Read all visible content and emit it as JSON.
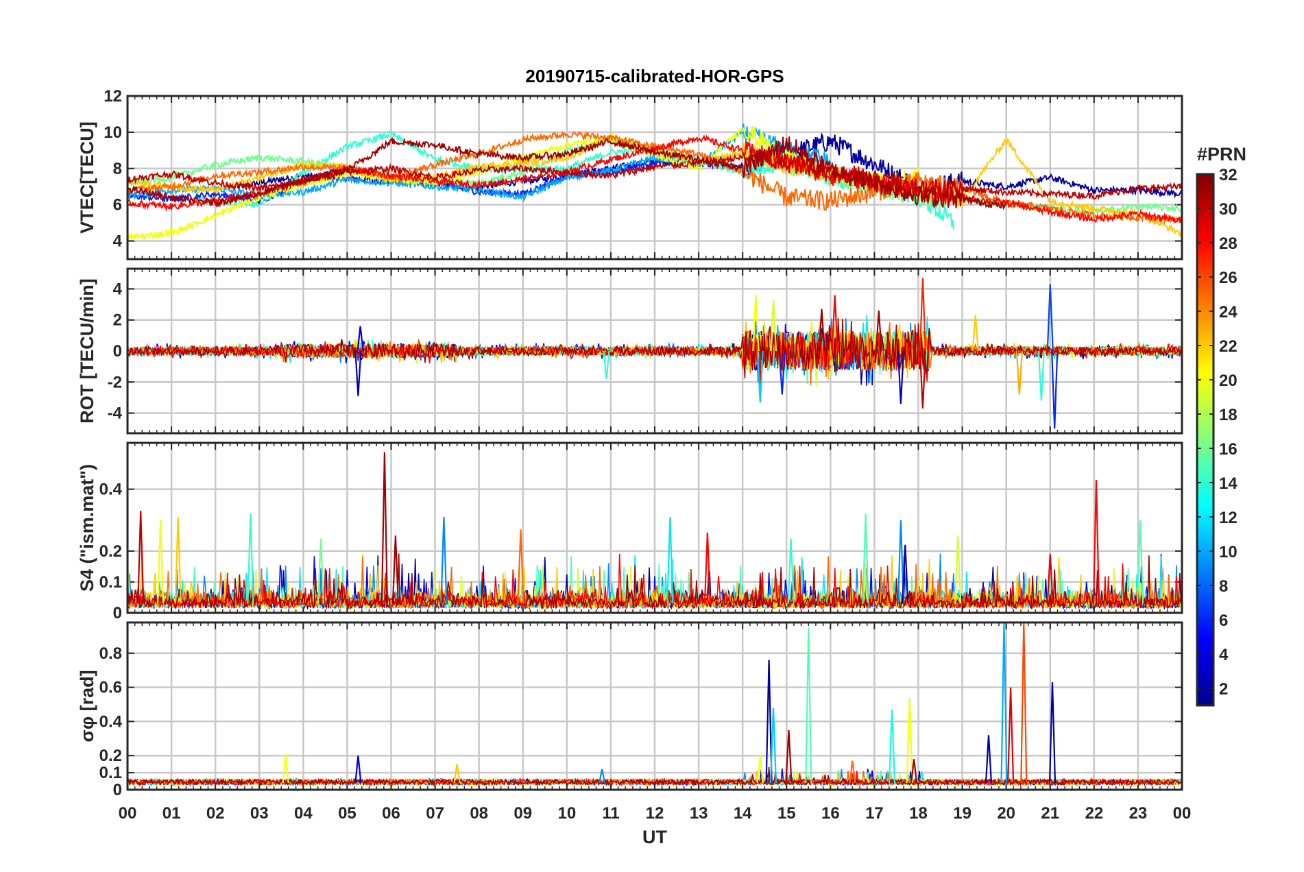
{
  "figure": {
    "title": "20190715-calibrated-HOR-GPS",
    "xlabel": "UT",
    "x_ticks": [
      "00",
      "01",
      "02",
      "03",
      "04",
      "05",
      "06",
      "07",
      "08",
      "09",
      "10",
      "11",
      "12",
      "13",
      "14",
      "15",
      "16",
      "17",
      "18",
      "19",
      "20",
      "21",
      "22",
      "23",
      "00"
    ]
  },
  "colorbar": {
    "label": "#PRN",
    "range": [
      1,
      32
    ],
    "ticks": [
      "2",
      "4",
      "6",
      "8",
      "10",
      "12",
      "14",
      "16",
      "18",
      "20",
      "22",
      "24",
      "26",
      "28",
      "30",
      "32"
    ],
    "colormap": "jet"
  },
  "chart_data": [
    {
      "type": "line",
      "panel": "vtec",
      "ylabel": "VTEC[TECU]",
      "ylim": [
        3,
        12
      ],
      "yticks": [
        "4",
        "6",
        "8",
        "10",
        "12"
      ],
      "grid": true,
      "series": [
        {
          "prn": 2,
          "x": [
            2.5,
            4,
            6,
            8,
            10,
            12,
            14,
            16,
            18,
            19,
            20,
            21,
            22,
            23,
            24
          ],
          "y": [
            7.0,
            7.6,
            7.3,
            7.0,
            7.6,
            8.4,
            8.1,
            9.5,
            7.0,
            7.3,
            7.0,
            7.5,
            6.8,
            6.8,
            6.6
          ]
        },
        {
          "prn": 6,
          "x": [
            0,
            1,
            2,
            3,
            4,
            5,
            6,
            7,
            8,
            9,
            10,
            11,
            12,
            13
          ],
          "y": [
            6.5,
            6.3,
            6.6,
            6.2,
            7.3,
            8.0,
            7.5,
            7.2,
            6.7,
            6.6,
            7.6,
            7.8,
            8.3,
            8.5
          ]
        },
        {
          "prn": 10,
          "x": [
            0,
            1,
            2,
            3,
            4,
            5,
            6,
            7,
            8,
            9,
            10,
            11,
            12,
            13,
            14,
            15,
            16
          ],
          "y": [
            6.5,
            6.8,
            6.9,
            6.5,
            6.7,
            7.4,
            7.2,
            7.0,
            6.8,
            6.4,
            7.5,
            7.9,
            8.6,
            8.2,
            10.0,
            9.0,
            8.4
          ]
        },
        {
          "prn": 14,
          "x": [
            1.5,
            3,
            4,
            5,
            6,
            7,
            8,
            9,
            10,
            11,
            12,
            13,
            14,
            15,
            16,
            17,
            18,
            18.8
          ],
          "y": [
            6.3,
            6.0,
            7.8,
            9.2,
            9.9,
            8.5,
            8.0,
            7.9,
            8.0,
            8.9,
            9.0,
            8.4,
            7.8,
            8.5,
            7.5,
            7.0,
            6.5,
            5.0
          ]
        },
        {
          "prn": 16,
          "x": [
            0,
            1,
            2,
            3,
            4,
            5,
            6,
            7,
            8,
            9,
            10,
            11,
            12,
            13,
            14,
            15,
            16,
            17,
            18,
            19,
            20,
            21,
            22,
            23,
            24
          ],
          "y": [
            7.2,
            7.5,
            8.2,
            8.6,
            8.4,
            8.0,
            7.6,
            7.3,
            7.2,
            7.8,
            8.9,
            9.6,
            9.1,
            8.3,
            8.8,
            8.2,
            7.6,
            7.0,
            6.5,
            6.3,
            6.0,
            5.8,
            5.6,
            5.9,
            5.8
          ]
        },
        {
          "prn": 20,
          "x": [
            0,
            0.5,
            1.1,
            3,
            4,
            5,
            6,
            7,
            8,
            9,
            10,
            11,
            12,
            13,
            14,
            15,
            16,
            17,
            18
          ],
          "y": [
            4.2,
            4.3,
            4.5,
            6.4,
            7.1,
            7.7,
            7.4,
            7.2,
            7.8,
            8.6,
            9.3,
            9.7,
            8.7,
            8.0,
            10.2,
            8.6,
            7.7,
            7.2,
            7.5
          ]
        },
        {
          "prn": 22,
          "x": [
            0,
            1,
            2,
            3,
            4,
            5,
            6,
            7,
            8,
            9,
            10,
            11,
            12,
            13,
            14,
            15,
            16,
            17,
            18,
            19,
            20,
            21,
            22,
            23,
            24
          ],
          "y": [
            7.3,
            7.0,
            6.8,
            7.5,
            8.2,
            8.1,
            7.4,
            7.5,
            8.1,
            8.3,
            8.6,
            9.7,
            9.0,
            8.3,
            8.9,
            8.2,
            7.7,
            7.2,
            6.8,
            6.3,
            9.6,
            6.2,
            5.8,
            5.5,
            4.4
          ]
        },
        {
          "prn": 25,
          "x": [
            0,
            1,
            2,
            3,
            4,
            5,
            6,
            7,
            8,
            9,
            10,
            11,
            12,
            13,
            14,
            15,
            16,
            17,
            18,
            19,
            20,
            21,
            22,
            23,
            24
          ],
          "y": [
            6.8,
            7.0,
            7.6,
            7.8,
            8.1,
            8.0,
            7.5,
            8.2,
            8.8,
            9.6,
            9.9,
            9.7,
            9.2,
            8.8,
            7.8,
            6.4,
            6.2,
            6.7,
            7.3,
            6.9,
            6.1,
            5.8,
            5.4,
            5.3,
            5.2
          ]
        },
        {
          "prn": 28,
          "x": [
            0,
            1,
            2,
            3,
            4,
            5,
            6,
            7,
            8,
            9,
            10,
            11,
            12,
            13,
            14,
            15,
            16,
            17,
            18,
            19,
            20,
            21,
            22,
            23,
            24
          ],
          "y": [
            6.1,
            5.9,
            6.2,
            6.6,
            7.3,
            8.0,
            7.6,
            7.3,
            7.1,
            7.4,
            7.8,
            8.5,
            9.1,
            9.7,
            9.0,
            8.4,
            7.6,
            7.3,
            6.7,
            6.4,
            6.1,
            5.6,
            5.2,
            5.5,
            5.1
          ]
        },
        {
          "prn": 30,
          "x": [
            0,
            1,
            2,
            3,
            4,
            5,
            6,
            7,
            8,
            9,
            10,
            11,
            12,
            13,
            14,
            15,
            16,
            17,
            18,
            19,
            20,
            21,
            22,
            23,
            24
          ],
          "y": [
            7.4,
            7.7,
            7.2,
            6.9,
            7.3,
            7.8,
            8.0,
            7.5,
            7.9,
            8.0,
            7.8,
            7.6,
            8.1,
            8.3,
            8.6,
            8.3,
            7.9,
            7.4,
            7.0,
            6.9,
            6.7,
            6.6,
            6.5,
            6.9,
            7.0
          ]
        },
        {
          "prn": 31,
          "x": [
            0,
            1,
            2,
            3,
            4,
            5,
            6,
            7,
            8,
            9,
            10,
            11,
            12,
            13,
            14,
            15,
            16,
            17,
            18,
            19,
            20
          ],
          "y": [
            6.9,
            6.4,
            6.1,
            6.6,
            7.4,
            7.9,
            9.5,
            9.3,
            8.8,
            8.6,
            8.8,
            9.5,
            8.9,
            8.5,
            8.0,
            9.4,
            7.9,
            7.2,
            6.5,
            6.3,
            5.9
          ]
        }
      ]
    },
    {
      "type": "line",
      "panel": "rot",
      "ylabel": "ROT [TECU/min]",
      "ylim": [
        -5.3,
        5.3
      ],
      "yticks": [
        "-4",
        "-2",
        "0",
        "2",
        "4"
      ],
      "grid": true,
      "spikes": [
        {
          "prn": 3,
          "x": 5.25,
          "y": -2.9
        },
        {
          "prn": 4,
          "x": 5.3,
          "y": 1.6
        },
        {
          "prn": 14,
          "x": 10.9,
          "y": -1.8
        },
        {
          "prn": 20,
          "x": 14.3,
          "y": 3.6
        },
        {
          "prn": 11,
          "x": 14.4,
          "y": -3.3
        },
        {
          "prn": 19,
          "x": 14.7,
          "y": 3.3
        },
        {
          "prn": 6,
          "x": 14.9,
          "y": -2.8
        },
        {
          "prn": 31,
          "x": 15.8,
          "y": 2.7
        },
        {
          "prn": 28,
          "x": 16.1,
          "y": 3.6
        },
        {
          "prn": 31,
          "x": 17.1,
          "y": 2.6
        },
        {
          "prn": 3,
          "x": 17.6,
          "y": -3.4
        },
        {
          "prn": 27,
          "x": 18.1,
          "y": 4.7
        },
        {
          "prn": 30,
          "x": 18.1,
          "y": -3.7
        },
        {
          "prn": 22,
          "x": 19.3,
          "y": 2.3
        },
        {
          "prn": 23,
          "x": 20.3,
          "y": -2.8
        },
        {
          "prn": 14,
          "x": 20.8,
          "y": -3.2
        },
        {
          "prn": 7,
          "x": 21.0,
          "y": 4.3
        },
        {
          "prn": 6,
          "x": 21.1,
          "y": -5.0
        }
      ]
    },
    {
      "type": "line",
      "panel": "s4",
      "ylabel": "S4 (\"ism.mat\")",
      "ylim": [
        0,
        0.55
      ],
      "yticks": [
        "0",
        "0.1",
        "0.2",
        "0.4"
      ],
      "grid": true,
      "spikes": [
        {
          "prn": 30,
          "x": 0.3,
          "y": 0.33
        },
        {
          "prn": 20,
          "x": 0.75,
          "y": 0.3
        },
        {
          "prn": 22,
          "x": 1.15,
          "y": 0.31
        },
        {
          "prn": 14,
          "x": 2.8,
          "y": 0.32
        },
        {
          "prn": 16,
          "x": 4.4,
          "y": 0.24
        },
        {
          "prn": 31,
          "x": 5.85,
          "y": 0.52
        },
        {
          "prn": 31,
          "x": 6.1,
          "y": 0.25
        },
        {
          "prn": 9,
          "x": 7.2,
          "y": 0.31
        },
        {
          "prn": 25,
          "x": 8.95,
          "y": 0.27
        },
        {
          "prn": 12,
          "x": 12.35,
          "y": 0.31
        },
        {
          "prn": 28,
          "x": 13.2,
          "y": 0.26
        },
        {
          "prn": 14,
          "x": 15.1,
          "y": 0.24
        },
        {
          "prn": 15,
          "x": 16.8,
          "y": 0.32
        },
        {
          "prn": 9,
          "x": 17.6,
          "y": 0.3
        },
        {
          "prn": 2,
          "x": 17.7,
          "y": 0.22
        },
        {
          "prn": 19,
          "x": 18.9,
          "y": 0.25
        },
        {
          "prn": 29,
          "x": 21.0,
          "y": 0.19
        },
        {
          "prn": 28,
          "x": 22.05,
          "y": 0.43
        },
        {
          "prn": 15,
          "x": 23.05,
          "y": 0.3
        }
      ]
    },
    {
      "type": "line",
      "panel": "sigma_phi",
      "ylabel": "σφ [rad]",
      "ylim": [
        0,
        0.98
      ],
      "yticks": [
        "0",
        "0.1",
        "0.2",
        "0.4",
        "0.6",
        "0.8"
      ],
      "grid": true,
      "spikes": [
        {
          "prn": 20,
          "x": 3.6,
          "y": 0.21
        },
        {
          "prn": 4,
          "x": 5.25,
          "y": 0.2
        },
        {
          "prn": 22,
          "x": 7.5,
          "y": 0.15
        },
        {
          "prn": 9,
          "x": 10.8,
          "y": 0.12
        },
        {
          "prn": 20,
          "x": 14.4,
          "y": 0.2
        },
        {
          "prn": 2,
          "x": 14.6,
          "y": 0.76
        },
        {
          "prn": 11,
          "x": 14.7,
          "y": 0.48
        },
        {
          "prn": 31,
          "x": 15.05,
          "y": 0.35
        },
        {
          "prn": 15,
          "x": 15.5,
          "y": 0.95
        },
        {
          "prn": 25,
          "x": 16.5,
          "y": 0.17
        },
        {
          "prn": 13,
          "x": 17.4,
          "y": 0.47
        },
        {
          "prn": 20,
          "x": 17.8,
          "y": 0.54
        },
        {
          "prn": 31,
          "x": 17.9,
          "y": 0.18
        },
        {
          "prn": 2,
          "x": 19.6,
          "y": 0.32
        },
        {
          "prn": 10,
          "x": 19.95,
          "y": 0.98
        },
        {
          "prn": 29,
          "x": 20.1,
          "y": 0.6
        },
        {
          "prn": 26,
          "x": 20.4,
          "y": 0.98
        },
        {
          "prn": 2,
          "x": 21.05,
          "y": 0.63
        }
      ]
    }
  ]
}
